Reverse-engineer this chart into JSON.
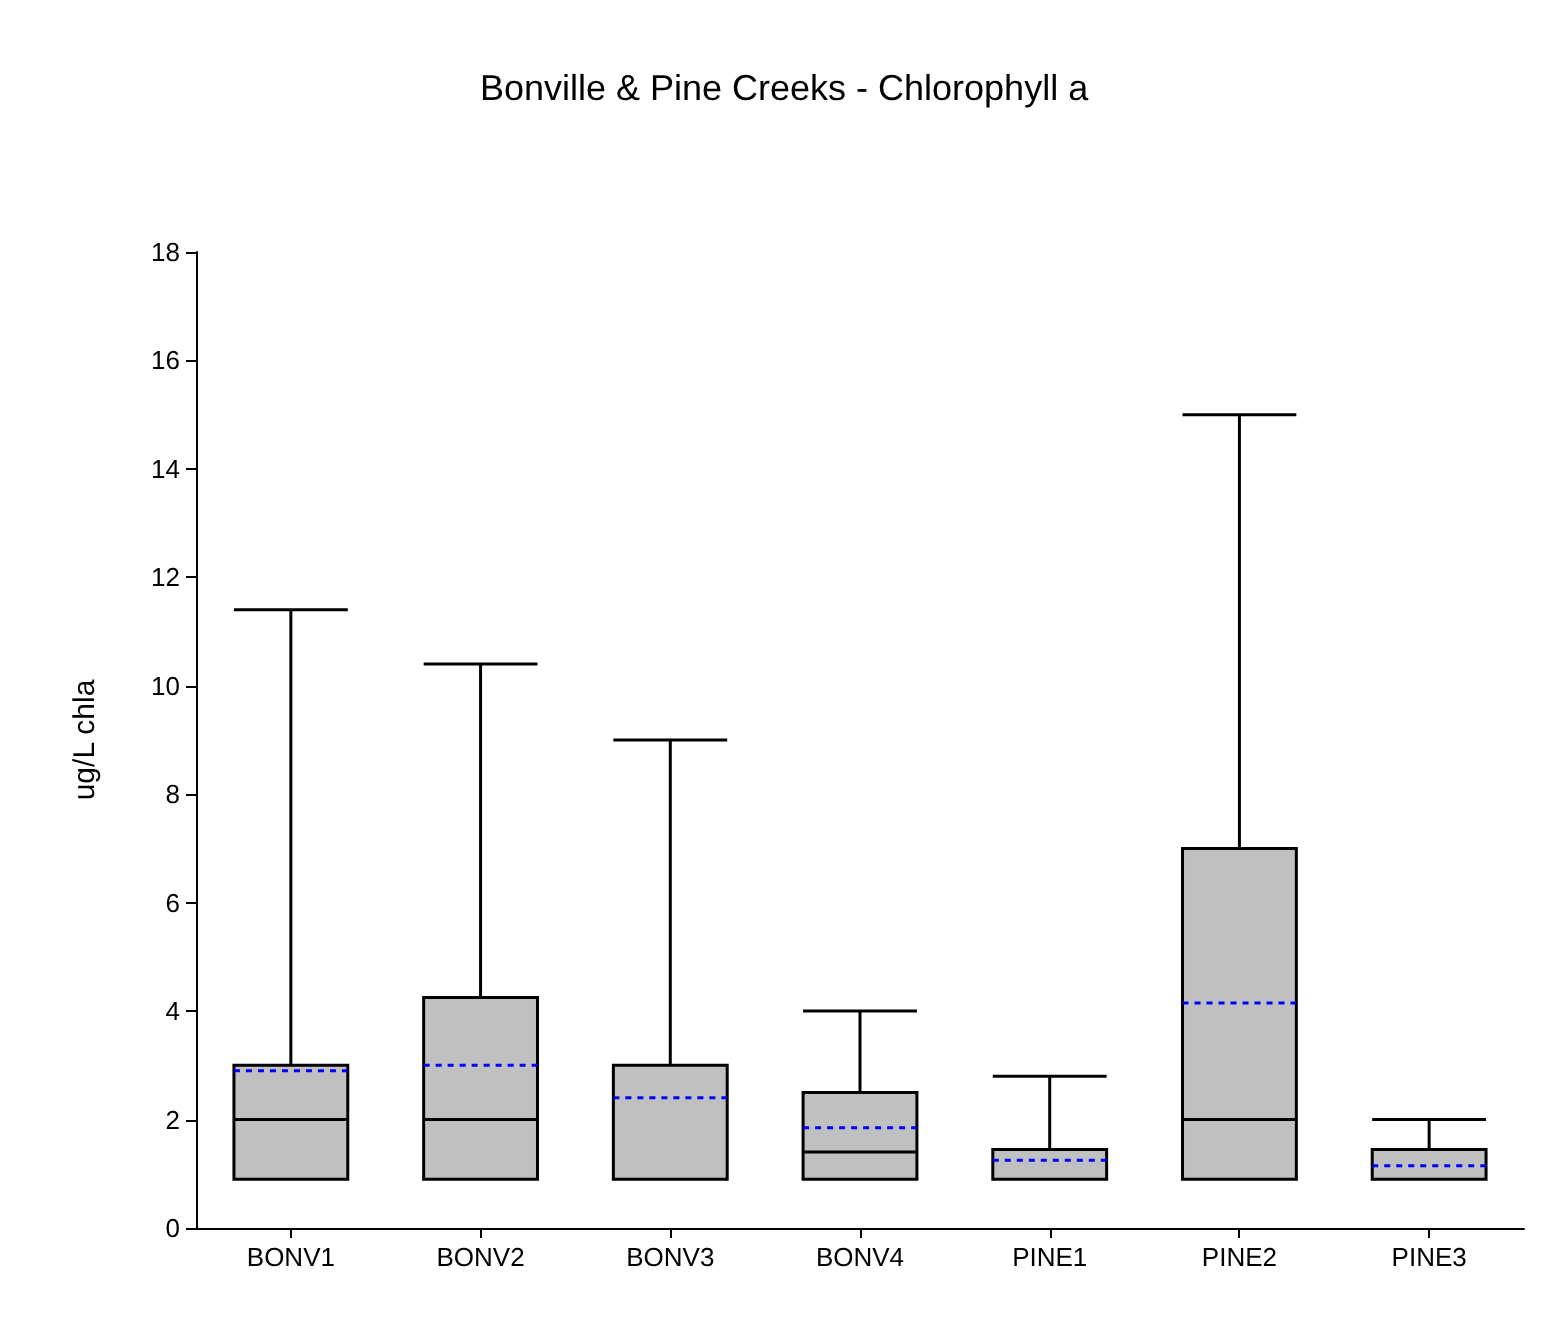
{
  "chart_data": {
    "type": "box",
    "title": "Bonville & Pine Creeks - Chlorophyll a",
    "ylabel": "ug/L chla",
    "categories": [
      "BONV1",
      "BONV2",
      "BONV3",
      "BONV4",
      "PINE1",
      "PINE2",
      "PINE3"
    ],
    "series": [
      {
        "color": "#c0c0c0",
        "boxes": [
          {
            "low": 0.9,
            "q1": 0.9,
            "median": 2,
            "q3": 3,
            "high": 11.4,
            "mean": 2.9
          },
          {
            "low": 0.9,
            "q1": 0.9,
            "median": 2,
            "q3": 4.25,
            "high": 10.4,
            "mean": 3.0
          },
          {
            "low": 0.9,
            "q1": 0.9,
            "median": 0.9,
            "q3": 3,
            "high": 9,
            "mean": 2.4
          },
          {
            "low": 0.9,
            "q1": 0.9,
            "median": 1.4,
            "q3": 2.5,
            "high": 4,
            "mean": 1.85
          },
          {
            "low": 0.9,
            "q1": 0.9,
            "median": 0.9,
            "q3": 1.45,
            "high": 2.8,
            "mean": 1.25
          },
          {
            "low": 0.9,
            "q1": 0.9,
            "median": 2,
            "q3": 7,
            "high": 15,
            "mean": 4.15
          },
          {
            "low": 0.9,
            "q1": 0.9,
            "median": 0.9,
            "q3": 1.45,
            "high": 2,
            "mean": 1.15
          }
        ]
      }
    ],
    "ylim": [
      0,
      18
    ],
    "yticks": [
      0,
      2,
      4,
      6,
      8,
      10,
      12,
      14,
      16,
      18
    ],
    "grid": false
  }
}
